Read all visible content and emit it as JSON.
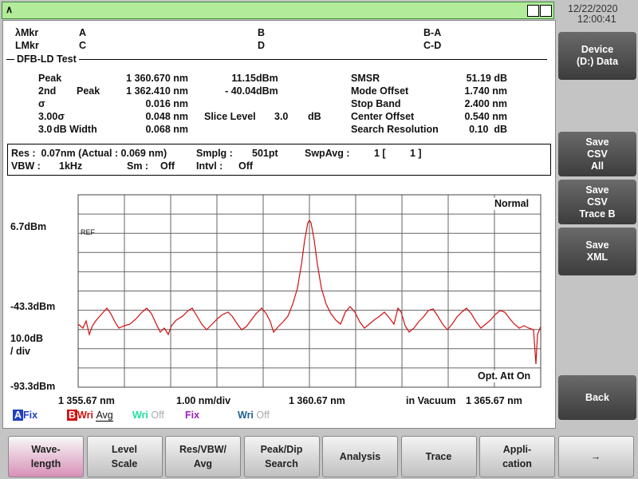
{
  "window": {
    "logo": "∧"
  },
  "clock": {
    "date": "12/22/2020",
    "time": "12:00:41"
  },
  "markers": {
    "row1": [
      "λMkr",
      "A",
      "B",
      "B-A"
    ],
    "row2": [
      "LMkr",
      "C",
      "D",
      "C-D"
    ]
  },
  "section": "DFB-LD Test",
  "results": {
    "left": [
      [
        "Peak",
        "1 360.670 nm",
        "11.15",
        "dBm"
      ],
      [
        "2nd",
        "Peak",
        "1 362.410 nm",
        "- 40.04",
        "dBm"
      ],
      [
        "σ",
        "0.016 nm"
      ],
      [
        "3.00σ",
        "0.048 nm",
        "Slice Level",
        "3.0",
        "dB"
      ],
      [
        "3.0",
        "dB Width",
        "0.068 nm"
      ]
    ],
    "right": [
      [
        "SMSR",
        "51.19 dB"
      ],
      [
        "Mode Offset",
        "1.740 nm"
      ],
      [
        "Stop Band",
        "2.400 nm"
      ],
      [
        "Center Offset",
        "0.540 nm"
      ],
      [
        "Search Resolution",
        "0.10  dB"
      ]
    ]
  },
  "settings": {
    "row1": [
      "Res :  0.07nm (Actual : 0.069 nm)",
      "Smplg :",
      "501pt",
      "SwpAvg :",
      "1 [",
      "1 ]"
    ],
    "row2": [
      "VBW :",
      "1kHz",
      "Sm :",
      "Off",
      "Intvl :",
      "Off"
    ]
  },
  "graph": {
    "mode": "Normal",
    "ref": "REF",
    "y_labels": [
      "6.7dBm",
      "-43.3dBm",
      "10.0dB",
      "/ div",
      "-93.3dBm"
    ],
    "x_labels": [
      "1 355.67 nm",
      "1.00 nm/div",
      "1 360.67 nm",
      "in Vacuum",
      "1 365.67 nm"
    ],
    "att": "Opt. Att On"
  },
  "traces": [
    {
      "letter": "A",
      "text": "Fix"
    },
    {
      "letter": "B",
      "text": "Wri",
      "suffix": "Avg"
    },
    {
      "text": "Wri",
      "suffix": "Off"
    },
    {
      "text": "Fix"
    },
    {
      "text": "Wri",
      "suffix": "Off"
    }
  ],
  "softkeys": [
    [
      "Device",
      "(D:) Data"
    ],
    [
      "Save",
      "CSV",
      "All"
    ],
    [
      "Save",
      "CSV",
      "Trace B"
    ],
    [
      "Save",
      "XML"
    ],
    [
      "Back"
    ]
  ],
  "bottom_keys": [
    [
      "Wave-",
      "length"
    ],
    [
      "Level",
      "Scale"
    ],
    [
      "Res/VBW/",
      "Avg"
    ],
    [
      "Peak/Dip",
      "Search"
    ],
    [
      "Analysis"
    ],
    [
      "Trace"
    ],
    [
      "Appli-",
      "cation"
    ],
    [
      "→"
    ]
  ]
}
